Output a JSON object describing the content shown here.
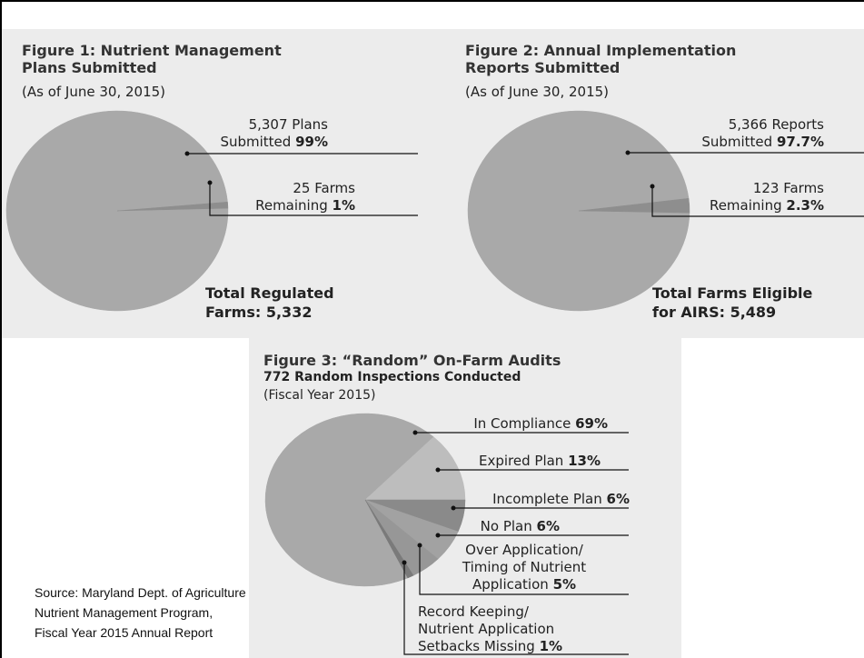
{
  "chart_data": [
    {
      "type": "pie",
      "title": "Figure 1:  Nutrient Management\nPlans Submitted",
      "subtitle": "(As of June 30, 2015)",
      "categories": [
        "5,307 Plans\nSubmitted",
        "25 Farms\nRemaining"
      ],
      "values": [
        99,
        1
      ],
      "value_labels": [
        "99%",
        "1%"
      ],
      "colors": [
        "#a9a9a9",
        "#8e8e8e"
      ],
      "annotation": "Total Regulated\nFarms: 5,332"
    },
    {
      "type": "pie",
      "title": "Figure 2:  Annual Implementation\nReports Submitted",
      "subtitle": "(As of June 30, 2015)",
      "categories": [
        "5,366 Reports\nSubmitted",
        "123 Farms\nRemaining"
      ],
      "values": [
        97.7,
        2.3
      ],
      "value_labels": [
        "97.7%",
        "2.3%"
      ],
      "colors": [
        "#a9a9a9",
        "#8e8e8e"
      ],
      "annotation": "Total Farms Eligible\nfor AIRS: 5,489"
    },
    {
      "type": "pie",
      "title": "Figure 3:  “Random” On-Farm Audits",
      "subtitle": "772 Random Inspections Conducted",
      "note": "(Fiscal Year 2015)",
      "categories": [
        "In Compliance",
        "Expired Plan",
        "Incomplete Plan",
        "No Plan",
        "Over Application/\nTiming of Nutrient\nApplication",
        "Record Keeping/\nNutrient Application\nSetbacks Missing"
      ],
      "values": [
        69,
        13,
        6,
        6,
        5,
        1
      ],
      "value_labels": [
        "69%",
        "13%",
        "6%",
        "6%",
        "5%",
        "1%"
      ],
      "colors": [
        "#a9a9a9",
        "#bdbdbd",
        "#8a8a8a",
        "#a2a2a2",
        "#979797",
        "#7a7a7a"
      ]
    }
  ],
  "source": [
    "Source: Maryland Dept. of Agriculture",
    "Nutrient Management Program,",
    "Fiscal Year 2015 Annual Report"
  ]
}
